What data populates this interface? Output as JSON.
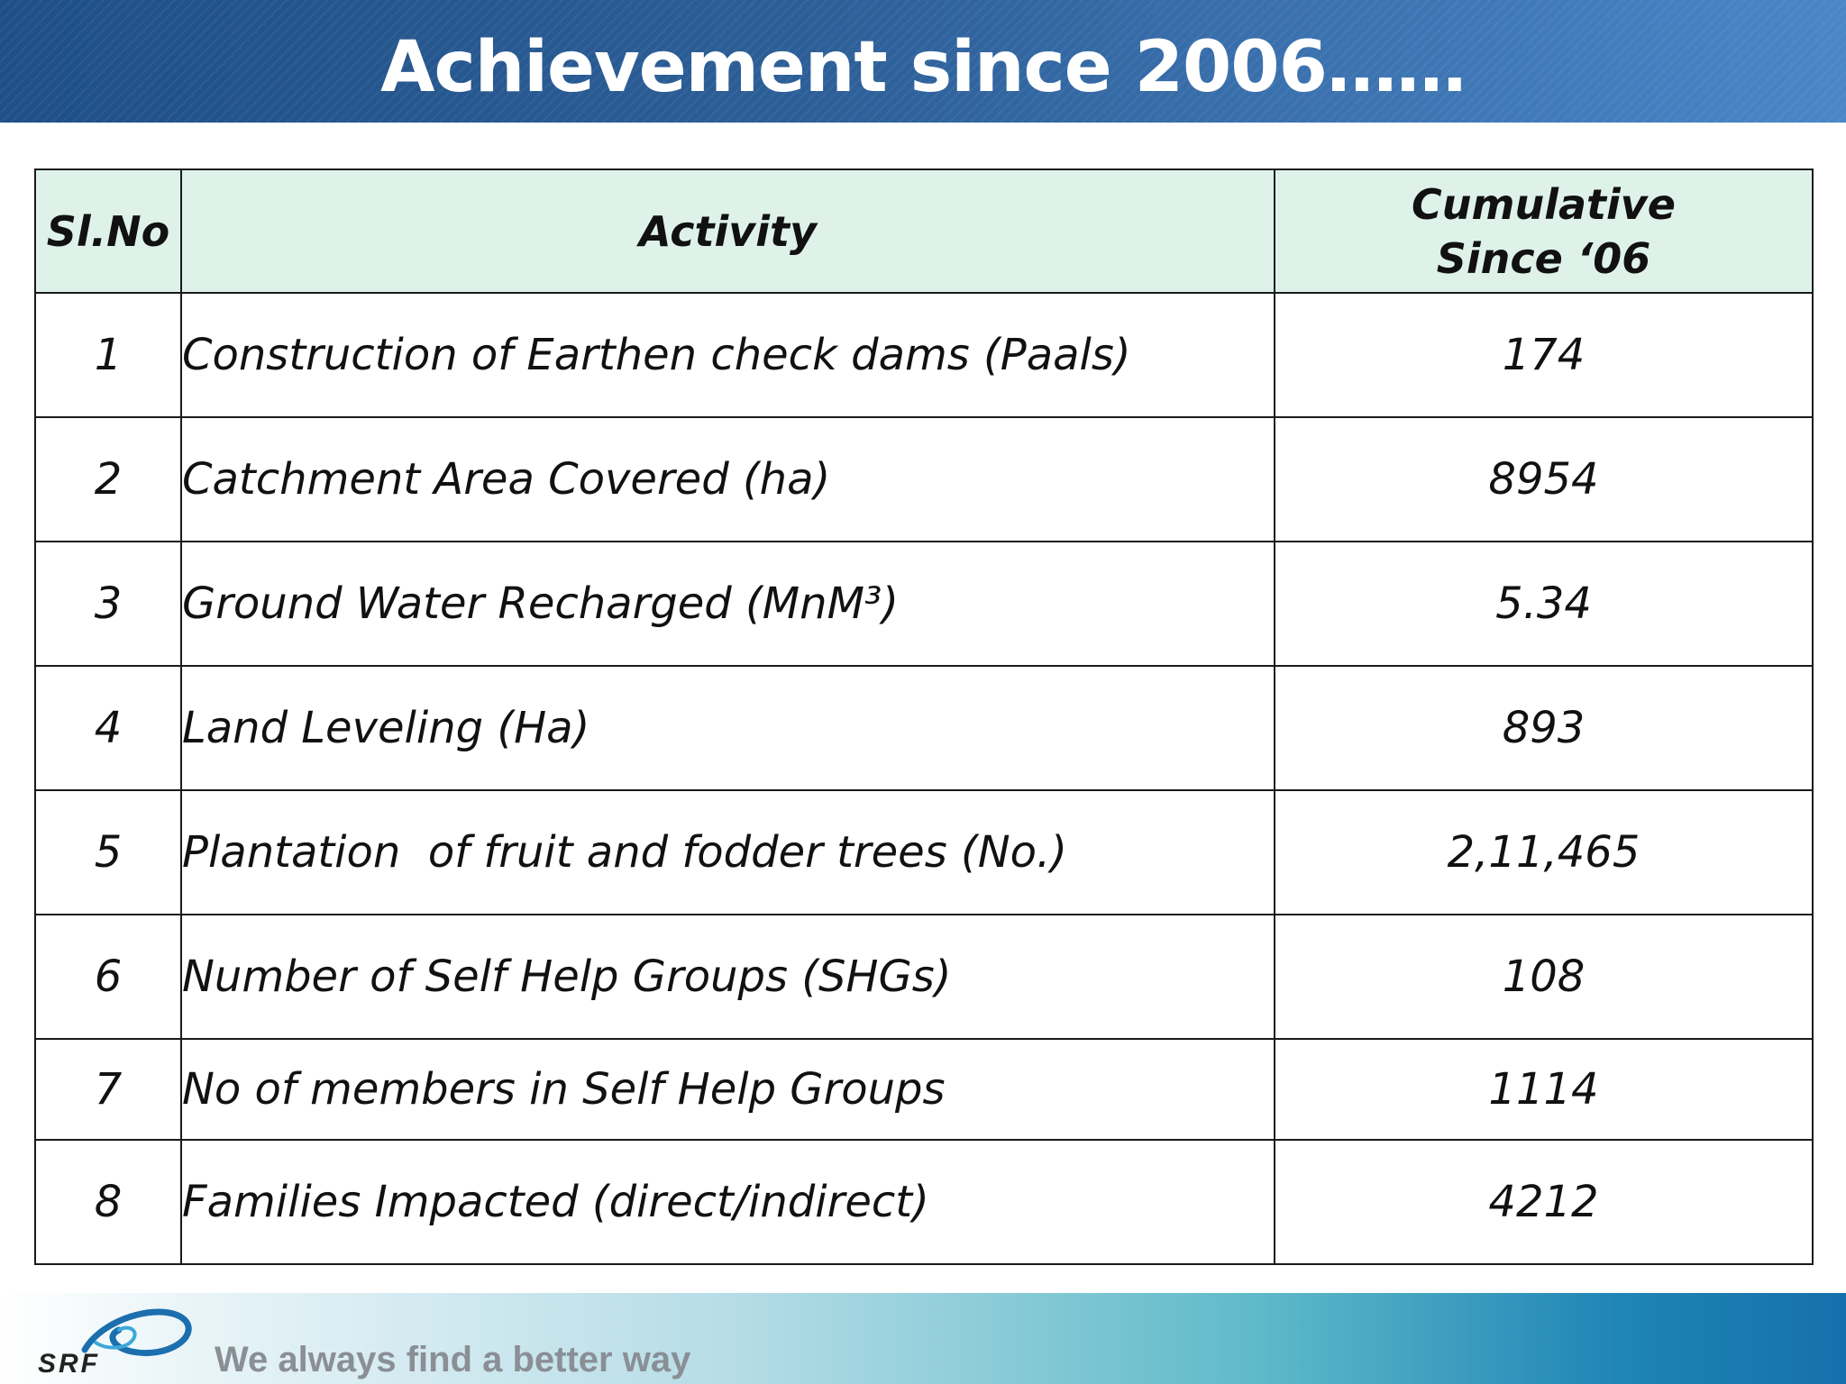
{
  "slide": {
    "title": "Achievement since 2006……"
  },
  "table": {
    "headers": {
      "sl_no": "Sl.No",
      "activity": "Activity",
      "cumulative_line1": "Cumulative",
      "cumulative_line2": "Since ‘06"
    },
    "rows": [
      {
        "no": "1",
        "activity": "Construction of Earthen check dams (Paals)",
        "value": "174"
      },
      {
        "no": "2",
        "activity": "Catchment Area Covered (ha)",
        "value": "8954"
      },
      {
        "no": "3",
        "activity": "Ground Water Recharged (MnM³)",
        "value": "5.34"
      },
      {
        "no": "4",
        "activity": "Land Leveling (Ha)",
        "value": "893"
      },
      {
        "no": "5",
        "activity": "Plantation  of fruit and fodder trees (No.)",
        "value": "2,11,465"
      },
      {
        "no": "6",
        "activity": "Number of Self Help Groups (SHGs)",
        "value": "108"
      },
      {
        "no": "7",
        "activity": "No of members in Self Help Groups",
        "value": "1114"
      },
      {
        "no": "8",
        "activity": "Families Impacted (direct/indirect)",
        "value": "4212"
      }
    ]
  },
  "footer": {
    "logo_text": "SRF",
    "tagline": "We always find a better way"
  }
}
